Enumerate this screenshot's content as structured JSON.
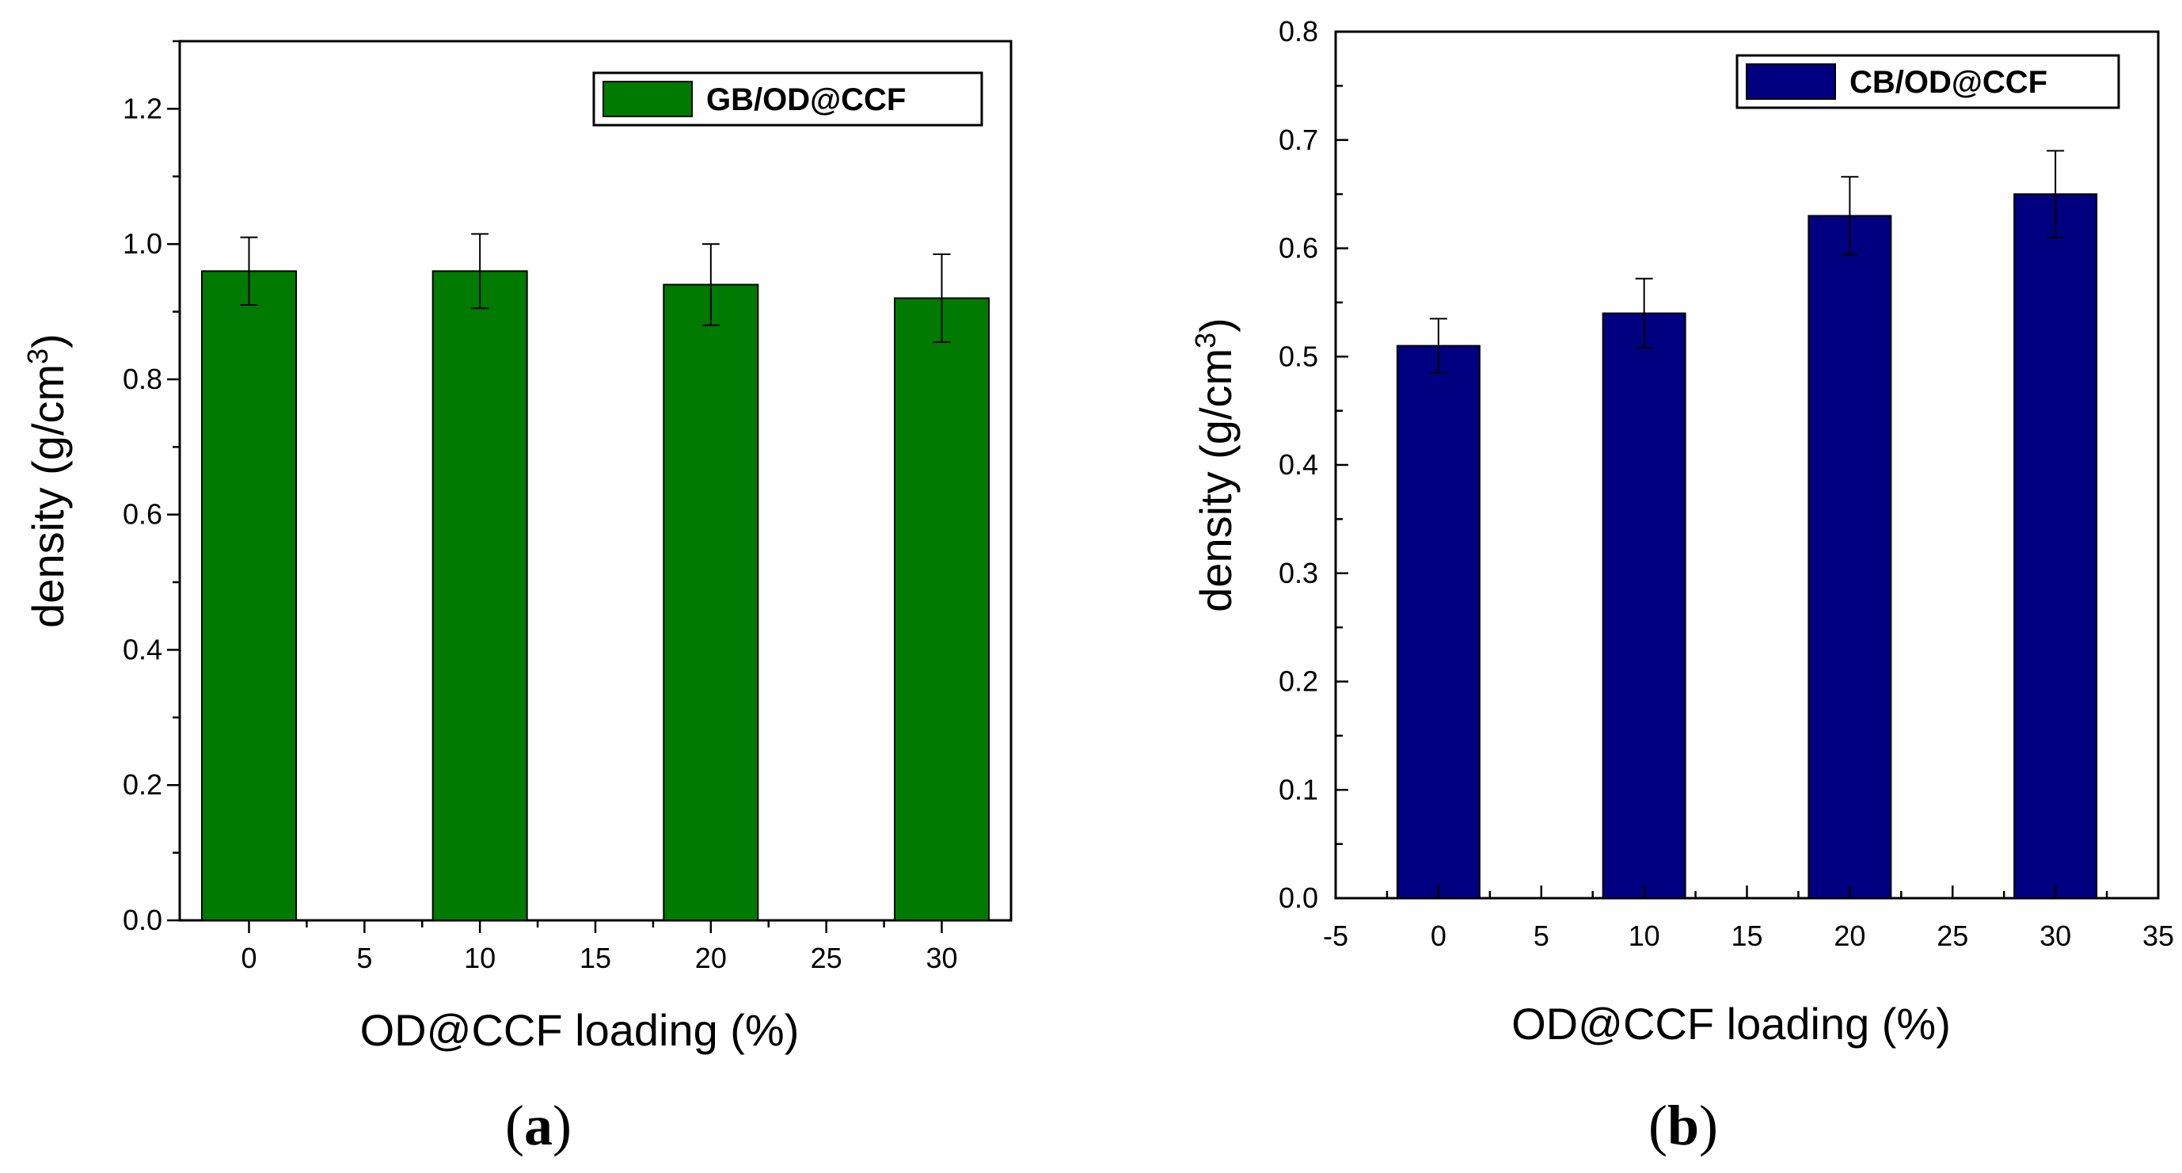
{
  "chart_data": [
    {
      "type": "bar",
      "panel_label": "(a)",
      "xlabel": "OD@CCF loading (%)",
      "ylabel": "density (g/cm3)",
      "x": [
        0,
        10,
        20,
        30
      ],
      "values": [
        0.96,
        0.96,
        0.94,
        0.92
      ],
      "errors": [
        0.05,
        0.055,
        0.06,
        0.065
      ],
      "series": [
        {
          "name": "GB/OD@CCF",
          "color": "#007a00"
        }
      ],
      "xlim": [
        -3,
        33
      ],
      "ylim": [
        0,
        1.3
      ],
      "xticks": [
        0,
        5,
        10,
        15,
        20,
        25,
        30
      ],
      "yticks": [
        0.0,
        0.2,
        0.4,
        0.6,
        0.8,
        1.0,
        1.2
      ],
      "legend": "top-right",
      "grid": false
    },
    {
      "type": "bar",
      "panel_label": "(b)",
      "xlabel": "OD@CCF loading (%)",
      "ylabel": "density (g/cm3)",
      "x": [
        0,
        10,
        20,
        30
      ],
      "values": [
        0.51,
        0.54,
        0.63,
        0.65
      ],
      "errors": [
        0.025,
        0.032,
        0.036,
        0.04
      ],
      "series": [
        {
          "name": "CB/OD@CCF",
          "color": "#000080"
        }
      ],
      "xlim": [
        -5,
        35
      ],
      "ylim": [
        0,
        0.8
      ],
      "xticks": [
        -5,
        0,
        5,
        10,
        15,
        20,
        25,
        30,
        35
      ],
      "yticks": [
        0.0,
        0.1,
        0.2,
        0.3,
        0.4,
        0.5,
        0.6,
        0.7,
        0.8
      ],
      "legend": "top-right",
      "grid": false
    }
  ]
}
